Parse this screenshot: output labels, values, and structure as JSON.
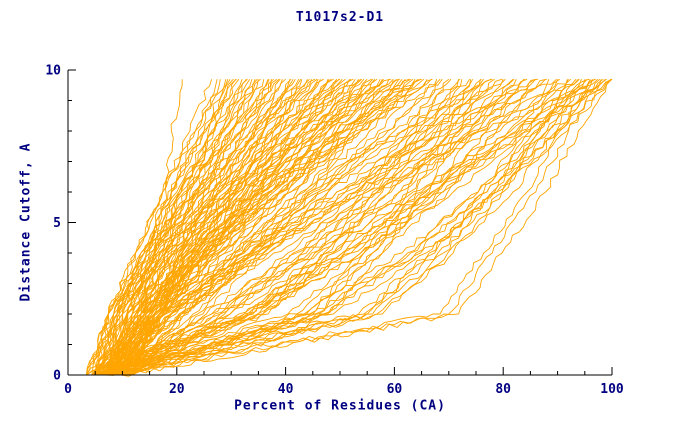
{
  "chart_data": {
    "type": "line",
    "title": "T1017s2-D1",
    "xlabel": "Percent of Residues (CA)",
    "ylabel": "Distance Cutoff, A",
    "xlim": [
      0,
      100
    ],
    "ylim": [
      0,
      10
    ],
    "x_ticks": [
      0,
      20,
      40,
      60,
      80,
      100
    ],
    "y_ticks": [
      0,
      5,
      10
    ],
    "x_minor_step": 5,
    "y_minor_step": 1,
    "grid": "off",
    "legend": "none",
    "line_color": "#FFA500",
    "text_color": "#000080",
    "axis_color": "#000000",
    "y_levels": [
      0,
      2,
      4,
      6,
      8,
      9.7
    ],
    "jitter_seed": 7,
    "echo_offsets": [
      0,
      1.8,
      -1.6
    ],
    "echo_skip": 1,
    "series_x": [
      [
        8,
        14,
        16,
        18,
        19,
        21
      ],
      [
        5,
        10,
        14,
        19,
        24,
        28
      ],
      [
        6,
        9,
        14,
        19,
        25,
        29
      ],
      [
        7,
        9,
        14,
        19,
        25,
        31
      ],
      [
        8,
        14,
        19,
        24,
        28,
        32
      ],
      [
        9,
        11,
        15,
        20,
        27,
        33
      ],
      [
        10,
        15,
        20,
        25,
        30,
        35
      ],
      [
        5,
        10,
        16,
        22,
        30,
        36
      ],
      [
        6,
        9,
        15,
        22,
        30,
        37
      ],
      [
        7,
        15,
        21,
        28,
        34,
        39
      ],
      [
        8,
        11,
        16,
        23,
        32,
        40
      ],
      [
        9,
        16,
        22,
        29,
        36,
        41
      ],
      [
        10,
        15,
        21,
        29,
        36,
        43
      ],
      [
        5,
        9,
        16,
        25,
        35,
        44
      ],
      [
        6,
        16,
        24,
        32,
        39,
        46
      ],
      [
        7,
        10,
        17,
        26,
        36,
        47
      ],
      [
        8,
        16,
        25,
        33,
        41,
        48
      ],
      [
        9,
        15,
        23,
        32,
        41,
        50
      ],
      [
        10,
        14,
        22,
        31,
        41,
        51
      ],
      [
        5,
        16,
        26,
        36,
        45,
        52
      ],
      [
        6,
        10,
        18,
        28,
        41,
        54
      ],
      [
        7,
        17,
        27,
        37,
        47,
        55
      ],
      [
        8,
        15,
        25,
        35,
        46,
        56
      ],
      [
        9,
        14,
        23,
        34,
        46,
        58
      ],
      [
        10,
        22,
        32,
        42,
        51,
        59
      ],
      [
        5,
        9,
        18,
        31,
        46,
        61
      ],
      [
        6,
        17,
        29,
        41,
        52,
        62
      ],
      [
        7,
        15,
        26,
        39,
        52,
        63
      ],
      [
        8,
        14,
        24,
        37,
        51,
        65
      ],
      [
        9,
        23,
        35,
        46,
        57,
        66
      ],
      [
        10,
        15,
        24,
        37,
        52,
        67
      ],
      [
        6,
        35,
        47,
        56,
        64,
        70
      ],
      [
        7,
        18,
        32,
        45,
        60,
        72
      ],
      [
        8,
        46,
        56,
        64,
        70,
        74
      ],
      [
        9,
        28,
        42,
        55,
        66,
        76
      ],
      [
        10,
        19,
        32,
        46,
        63,
        78
      ],
      [
        5,
        34,
        49,
        61,
        72,
        80
      ],
      [
        6,
        19,
        35,
        51,
        67,
        82
      ],
      [
        7,
        42,
        56,
        68,
        77,
        84
      ],
      [
        8,
        27,
        43,
        59,
        74,
        86
      ],
      [
        9,
        19,
        34,
        51,
        70,
        88
      ],
      [
        10,
        56,
        69,
        78,
        85,
        90
      ],
      [
        5,
        34,
        52,
        67,
        81,
        92
      ],
      [
        6,
        19,
        36,
        55,
        76,
        94
      ],
      [
        7,
        47,
        64,
        77,
        88,
        96
      ],
      [
        8,
        33,
        52,
        69,
        84,
        97
      ],
      [
        9,
        28,
        46,
        65,
        83,
        99
      ],
      [
        10,
        45,
        63,
        77,
        90,
        100
      ],
      [
        8,
        70,
        78,
        86,
        92,
        98
      ],
      [
        6,
        55,
        68,
        80,
        88,
        95
      ]
    ]
  }
}
